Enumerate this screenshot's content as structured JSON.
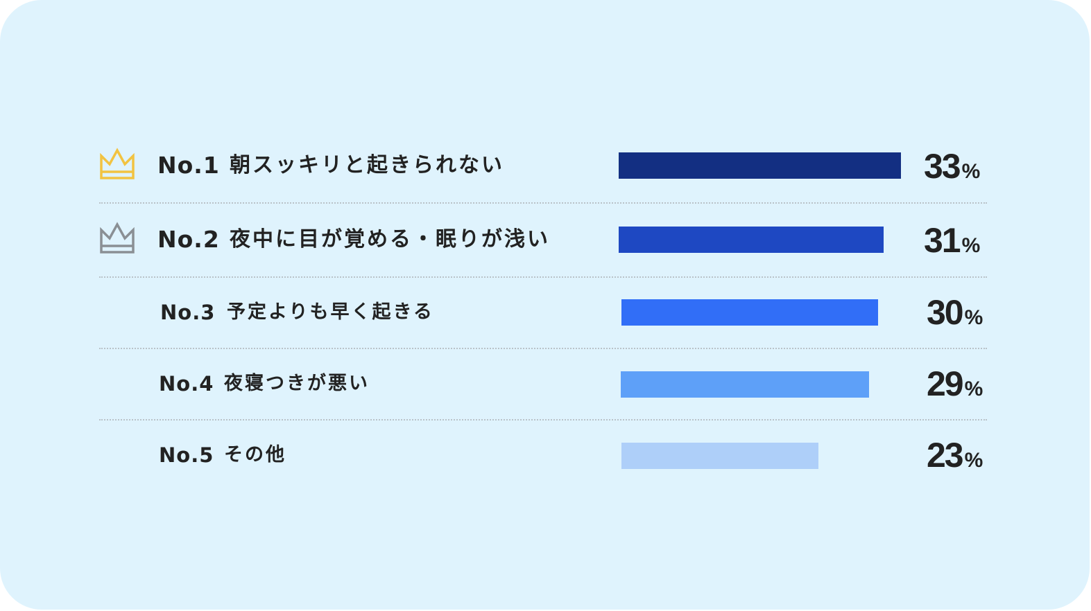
{
  "colors": {
    "background": "#dff3fd",
    "gold_crown": "#f2c341",
    "silver_crown": "#8a8f94",
    "text": "#222222",
    "divider": "#b9c2c8"
  },
  "chart_data": {
    "type": "bar",
    "orientation": "horizontal",
    "title": "",
    "xlabel": "",
    "ylabel": "",
    "xlim": [
      0,
      100
    ],
    "unit": "%",
    "grid": false,
    "categories": [
      "朝スッキリと起きられない",
      "夜中に目が覚める・眠りが浅い",
      "予定よりも早く起きる",
      "夜寝つきが悪い",
      "その他"
    ],
    "ranks": [
      "No.1",
      "No.2",
      "No.3",
      "No.4",
      "No.5"
    ],
    "values": [
      33,
      31,
      30,
      29,
      23
    ],
    "value_labels": [
      "33",
      "31",
      "30",
      "29",
      "23"
    ],
    "bar_colors": [
      "#132f82",
      "#1e48c2",
      "#316ef7",
      "#5ea0f8",
      "#aecff9"
    ],
    "icons": [
      "gold-crown-icon",
      "silver-crown-icon",
      null,
      null,
      null
    ]
  }
}
